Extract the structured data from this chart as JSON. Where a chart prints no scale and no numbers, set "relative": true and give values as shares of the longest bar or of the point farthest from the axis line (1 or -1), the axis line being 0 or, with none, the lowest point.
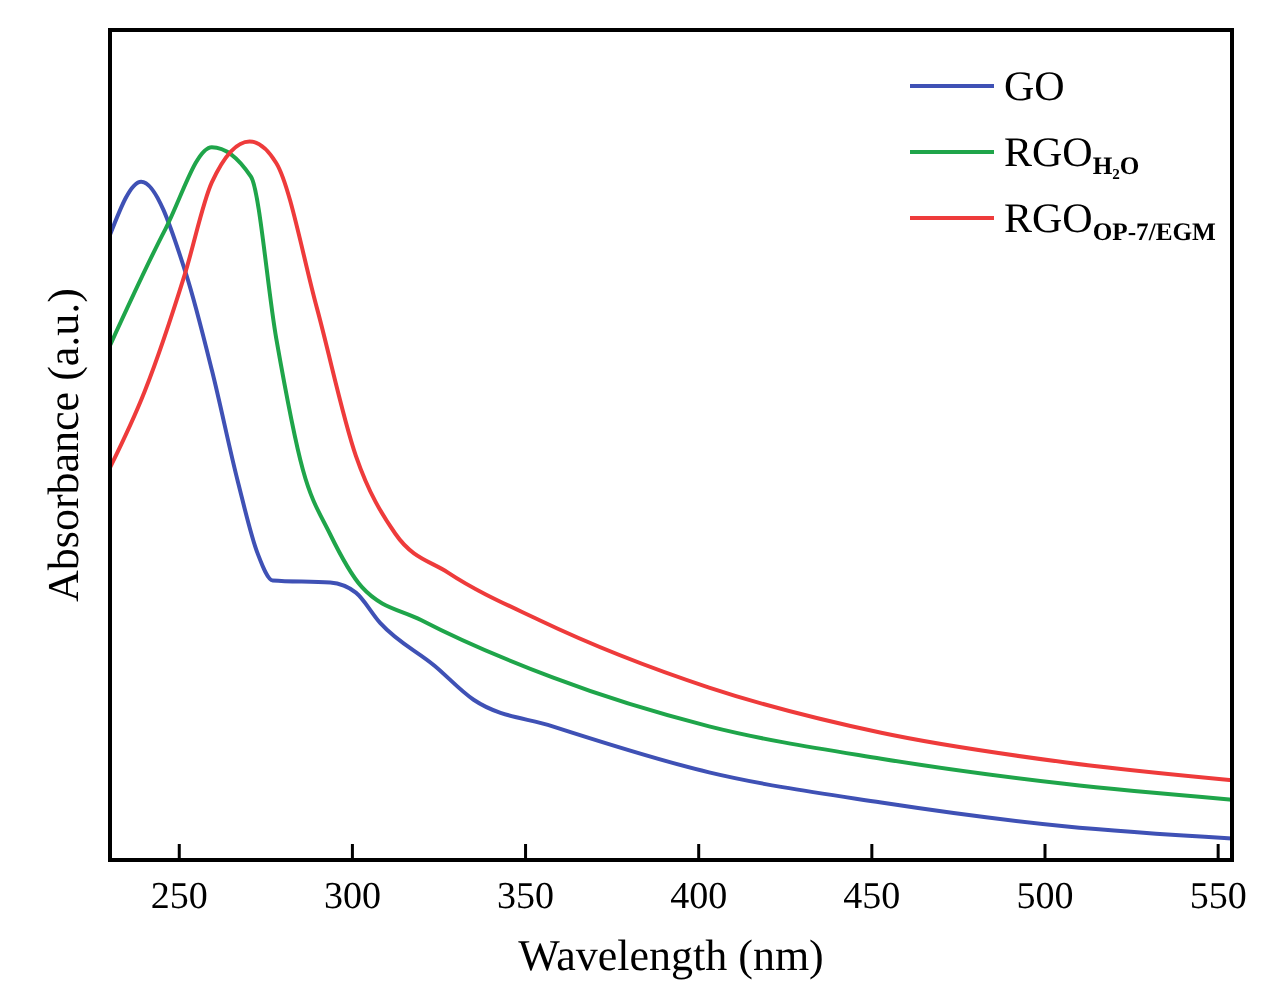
{
  "chart_data": {
    "type": "line",
    "relative": true,
    "xlabel": "Wavelength (nm)",
    "ylabel": "Absorbance (a.u.)",
    "xlim": [
      230,
      554
    ],
    "xticks": [
      250,
      300,
      350,
      400,
      450,
      500,
      550
    ],
    "legend": "top right",
    "line_style": "solid",
    "grid": false,
    "series": [
      {
        "name": "GO",
        "color": "#3f51b5",
        "x": [
          230,
          239,
          252,
          259.5,
          267,
          272.6,
          277,
          293.6,
          301,
          308,
          323.8,
          335,
          357.8,
          403,
          452.7,
          505.6,
          554
        ],
        "values": [
          0.87,
          0.944,
          0.815,
          0.68,
          0.525,
          0.427,
          0.389,
          0.386,
          0.372,
          0.33,
          0.27,
          0.223,
          0.186,
          0.122,
          0.08,
          0.047,
          0.03
        ]
      },
      {
        "name": "RGO$_{H₂O}$",
        "color": "#1fa54a",
        "x": [
          230,
          246,
          259.4,
          270.7,
          278,
          285.7,
          293.5,
          302.7,
          319.8,
          357.8,
          403,
          452.7,
          505.6,
          554
        ],
        "values": [
          0.716,
          0.878,
          0.992,
          0.951,
          0.726,
          0.543,
          0.454,
          0.38,
          0.334,
          0.254,
          0.186,
          0.141,
          0.106,
          0.084
        ]
      },
      {
        "name": "RGO$_{OP-7/EGM}$",
        "color": "#ee3b3b",
        "x": [
          230,
          240,
          251.6,
          259.4,
          270.3,
          278,
          289.7,
          301,
          312.4,
          327.6,
          353.9,
          403,
          452.7,
          505.6,
          554
        ],
        "values": [
          0.546,
          0.652,
          0.815,
          0.943,
          1.0,
          0.97,
          0.769,
          0.5625,
          0.454,
          0.4,
          0.334,
          0.24,
          0.177,
          0.136,
          0.111
        ]
      }
    ]
  }
}
